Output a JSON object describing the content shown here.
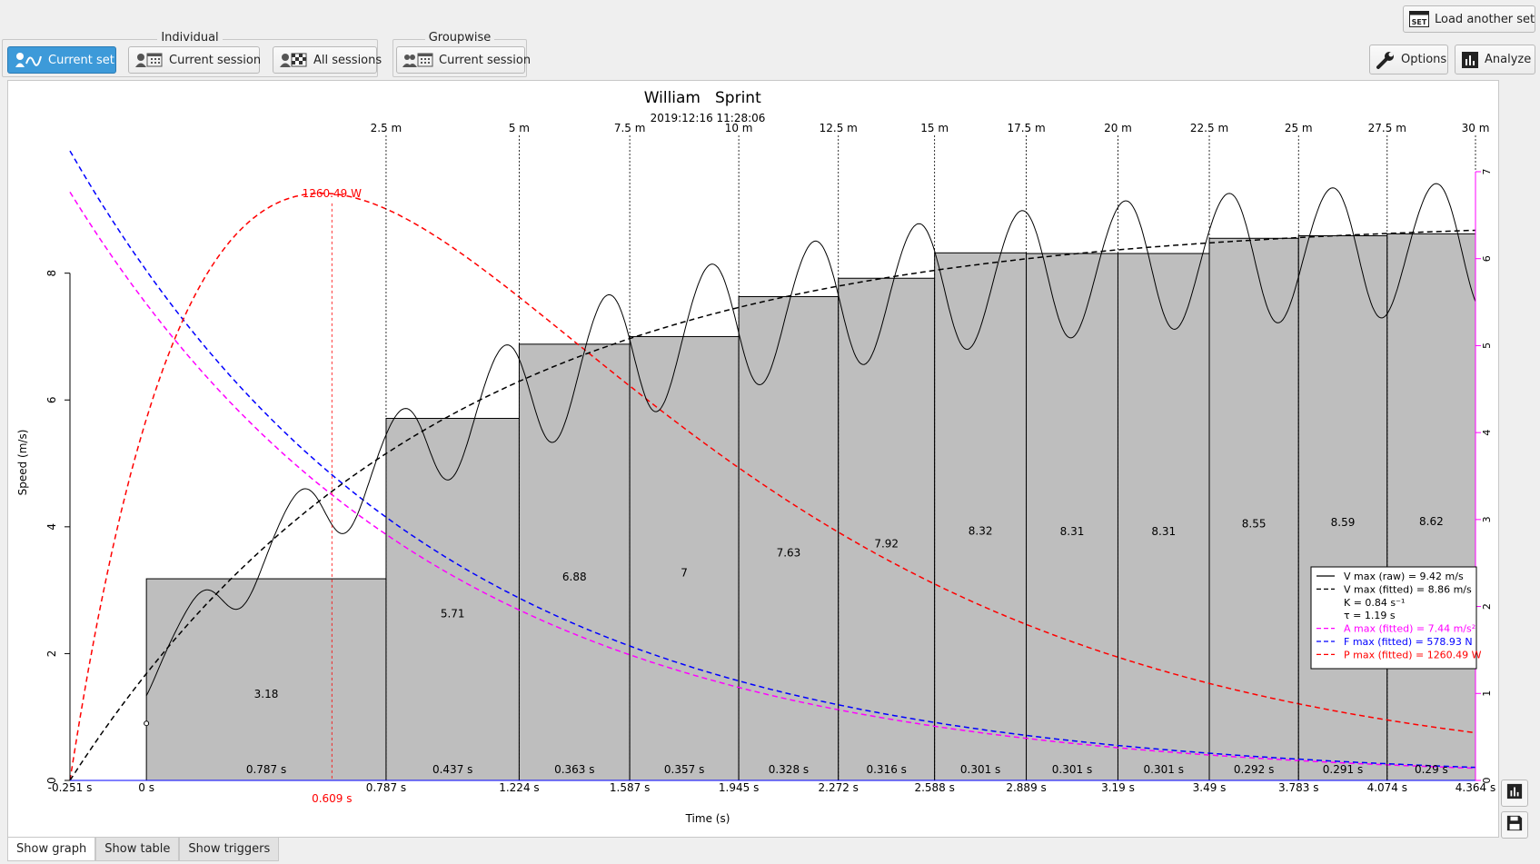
{
  "toolbar": {
    "individual_label": "Individual",
    "groupwise_label": "Groupwise",
    "current_set": "Current set",
    "current_session": "Current session",
    "all_sessions": "All sessions",
    "group_current_session": "Current session",
    "load_another_set": "Load another set",
    "load_icon_text": "SET",
    "options": "Options",
    "analyze": "Analyze"
  },
  "tabs": [
    "Show graph",
    "Show table",
    "Show triggers"
  ],
  "colors": {
    "accent": "#3d9ad9",
    "bars": "#bebebe",
    "power": "#ff0000",
    "force": "#0000ff",
    "accel": "#ff00ff",
    "speed_fit": "#000000"
  },
  "chart_data": {
    "type": "bar",
    "title_name": "William",
    "title_test": "Sprint",
    "subtitle": "2019:12:16 11:28:06",
    "xlabel": "Time (s)",
    "ylabel": "Speed (m/s)",
    "xlim": [
      -0.251,
      4.364
    ],
    "ylim": [
      0,
      8
    ],
    "y_ticks": [
      "0",
      "2",
      "4",
      "6",
      "8"
    ],
    "y2_ticks": [
      "0",
      "1",
      "2",
      "3",
      "4",
      "5",
      "6",
      "7"
    ],
    "y2lim": [
      0,
      7
    ],
    "origin_tick": "-0.251 s",
    "split_times": [
      0,
      0.787,
      1.224,
      1.587,
      1.945,
      2.272,
      2.588,
      2.889,
      3.19,
      3.49,
      3.783,
      4.074,
      4.364
    ],
    "split_time_labels": [
      "0 s",
      "0.787 s",
      "1.224 s",
      "1.587 s",
      "1.945 s",
      "2.272 s",
      "2.588 s",
      "2.889 s",
      "3.19 s",
      "3.49 s",
      "3.783 s",
      "4.074 s",
      "4.364 s"
    ],
    "distances": [
      "2.5 m",
      "5 m",
      "7.5 m",
      "10 m",
      "12.5 m",
      "15 m",
      "17.5 m",
      "20 m",
      "22.5 m",
      "25 m",
      "27.5 m",
      "30 m"
    ],
    "bar_values": [
      3.18,
      5.71,
      6.88,
      7,
      7.63,
      7.92,
      8.32,
      8.31,
      8.31,
      8.55,
      8.59,
      8.62
    ],
    "bar_labels": [
      "3.18",
      "5.71",
      "6.88",
      "7",
      "7.63",
      "7.92",
      "8.32",
      "8.31",
      "8.31",
      "8.55",
      "8.59",
      "8.62"
    ],
    "interval_labels": [
      "0.787 s",
      "0.437 s",
      "0.363 s",
      "0.357 s",
      "0.328 s",
      "0.316 s",
      "0.301 s",
      "0.301 s",
      "0.301 s",
      "0.292 s",
      "0.291 s",
      "0.29 s"
    ],
    "pmax_time": 0.609,
    "pmax_time_label": "0.609 s",
    "pmax_label": "1260.49 W",
    "fit": {
      "vmax": 8.86,
      "k": 0.84,
      "tau": 1.19,
      "amax": 7.44,
      "fmax": 578.93,
      "pmax": 1260.49
    },
    "legend": [
      {
        "text": "V max (raw) = 9.42 m/s",
        "color": "#000000",
        "dash": false
      },
      {
        "text": "V max (fitted) = 8.86 m/s",
        "color": "#000000",
        "dash": true
      },
      {
        "text": "K = 0.84 s⁻¹",
        "color": "",
        "dash": false
      },
      {
        "text": "τ = 1.19 s",
        "color": "",
        "dash": false
      },
      {
        "text": "A max (fitted) = 7.44 m/s²",
        "color": "#ff00ff",
        "dash": true
      },
      {
        "text": "F max (fitted) = 578.93 N",
        "color": "#0000ff",
        "dash": true
      },
      {
        "text": "P max (fitted) = 1260.49 W",
        "color": "#ff0000",
        "dash": true
      }
    ],
    "legend_position": "right"
  }
}
